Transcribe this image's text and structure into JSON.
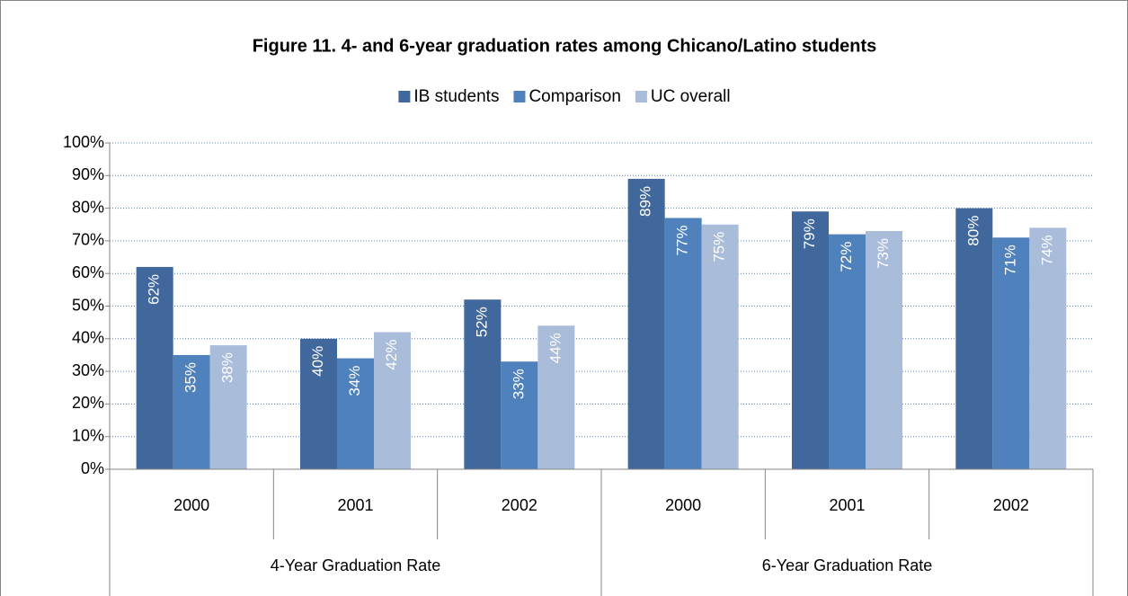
{
  "chart_data": {
    "type": "bar",
    "title": "Figure 11. 4- and 6-year graduation rates among Chicano/Latino students",
    "category_groups": [
      {
        "name": "4-Year Graduation Rate",
        "categories": [
          "2000",
          "2001",
          "2002"
        ]
      },
      {
        "name": "6-Year Graduation Rate",
        "categories": [
          "2000",
          "2001",
          "2002"
        ]
      }
    ],
    "series": [
      {
        "name": "IB students",
        "color": "#41689c",
        "values": [
          62,
          40,
          52,
          89,
          79,
          80
        ],
        "value_labels": [
          "62%",
          "40%",
          "52%",
          "89%",
          "79%",
          "80%"
        ]
      },
      {
        "name": "Comparison",
        "color": "#4f81bd",
        "values": [
          35,
          34,
          33,
          77,
          72,
          71
        ],
        "value_labels": [
          "35%",
          "34%",
          "33%",
          "77%",
          "72%",
          "71%"
        ]
      },
      {
        "name": "UC overall",
        "color": "#a9bcd9",
        "values": [
          38,
          42,
          44,
          75,
          73,
          74
        ],
        "value_labels": [
          "38%",
          "42%",
          "44%",
          "75%",
          "73%",
          "74%"
        ]
      }
    ],
    "ylim": [
      0,
      100
    ],
    "yticks": [
      {
        "value": 0,
        "label": "0%"
      },
      {
        "value": 10,
        "label": "10%"
      },
      {
        "value": 20,
        "label": "20%"
      },
      {
        "value": 30,
        "label": "30%"
      },
      {
        "value": 40,
        "label": "40%"
      },
      {
        "value": 50,
        "label": "50%"
      },
      {
        "value": 60,
        "label": "60%"
      },
      {
        "value": 70,
        "label": "70%"
      },
      {
        "value": 80,
        "label": "80%"
      },
      {
        "value": 90,
        "label": "90%"
      },
      {
        "value": 100,
        "label": "100%"
      }
    ],
    "grid": true,
    "legend": "top"
  }
}
